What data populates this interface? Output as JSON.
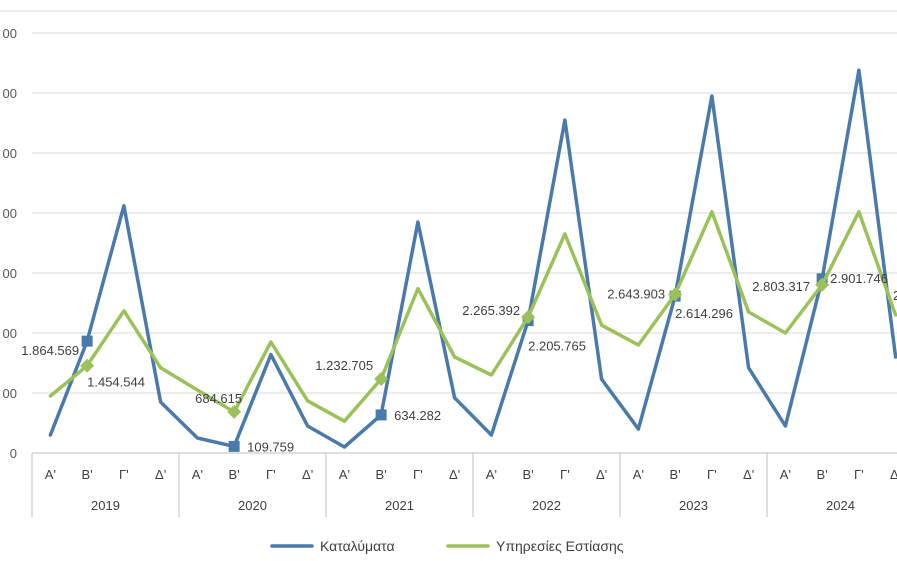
{
  "chart_data": {
    "type": "line",
    "title": "",
    "xlabel": "",
    "ylabel": "",
    "ylim": [
      0,
      7000000
    ],
    "y_ticks_visible": [
      "00",
      "00",
      "00",
      "00",
      "00",
      "00",
      "00",
      "0"
    ],
    "quarter_labels": [
      "Α'",
      "Β'",
      "Γ'",
      "Δ'"
    ],
    "years": [
      "2019",
      "2020",
      "2021",
      "2022",
      "2023",
      "2024"
    ],
    "categories": [
      "2019 Α'",
      "2019 Β'",
      "2019 Γ'",
      "2019 Δ'",
      "2020 Α'",
      "2020 Β'",
      "2020 Γ'",
      "2020 Δ'",
      "2021 Α'",
      "2021 Β'",
      "2021 Γ'",
      "2021 Δ'",
      "2022 Α'",
      "2022 Β'",
      "2022 Γ'",
      "2022 Δ'",
      "2023 Α'",
      "2023 Β'",
      "2023 Γ'",
      "2023 Δ'",
      "2024 Α'",
      "2024 Β'",
      "2024 Γ'",
      "2024 Δ'"
    ],
    "series": [
      {
        "name": "Καταλύματα",
        "color": "#4A7AAB",
        "marker": "square",
        "values": [
          300000,
          1864569,
          4120000,
          850000,
          250000,
          109759,
          1640000,
          450000,
          100000,
          634282,
          3850000,
          920000,
          300000,
          2205765,
          5550000,
          1230000,
          400000,
          2614296,
          5950000,
          1420000,
          450000,
          2901746,
          6380000,
          1600000
        ],
        "labeled_points": [
          {
            "index": 1,
            "label": "1.864.569"
          },
          {
            "index": 5,
            "label": "109.759"
          },
          {
            "index": 9,
            "label": "634.282"
          },
          {
            "index": 13,
            "label": "2.205.765"
          },
          {
            "index": 17,
            "label": "2.614.296"
          },
          {
            "index": 21,
            "label": "2.901.746"
          }
        ]
      },
      {
        "name": "Υπηρεσίες Εστίασης",
        "color": "#9BC15A",
        "marker": "diamond",
        "values": [
          950000,
          1454544,
          2370000,
          1420000,
          1050000,
          684615,
          1850000,
          870000,
          530000,
          1232705,
          2740000,
          1600000,
          1300000,
          2265392,
          3650000,
          2130000,
          1800000,
          2643903,
          4020000,
          2350000,
          2000000,
          2803317,
          4020000,
          2300000
        ],
        "labeled_points": [
          {
            "index": 1,
            "label": "1.454.544"
          },
          {
            "index": 5,
            "label": "684.615"
          },
          {
            "index": 9,
            "label": "1.232.705"
          },
          {
            "index": 13,
            "label": "2.265.392"
          },
          {
            "index": 17,
            "label": "2.643.903"
          },
          {
            "index": 21,
            "label": "2.803.317"
          }
        ]
      }
    ],
    "partial_label_right": "2",
    "legend_position": "bottom",
    "grid": true
  }
}
